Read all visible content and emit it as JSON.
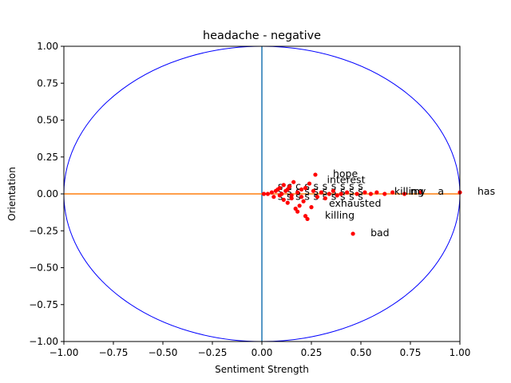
{
  "chart_data": {
    "type": "scatter",
    "title": "headache - negative",
    "xlabel": "Sentiment Strength",
    "ylabel": "Orientation",
    "xlim": [
      -1.0,
      1.0
    ],
    "ylim": [
      -1.0,
      1.0
    ],
    "xticks": [
      "−1.00",
      "−0.75",
      "−0.50",
      "−0.25",
      "0.00",
      "0.25",
      "0.50",
      "0.75",
      "1.00"
    ],
    "yticks": [
      "1.00",
      "0.75",
      "0.50",
      "0.25",
      "0.00",
      "−0.25",
      "−0.50",
      "−0.75",
      "−1.00"
    ],
    "grid": false,
    "colors": {
      "points": "#ff0000",
      "circle": "#0000ff",
      "vline": "#1f77b4",
      "hline": "#ff7f0e"
    },
    "labeled_points": [
      {
        "word": "has",
        "x": 1.0,
        "y": 0.01
      },
      {
        "word": "a",
        "x": 0.8,
        "y": 0.01
      },
      {
        "word": "my",
        "x": 0.66,
        "y": 0.01
      },
      {
        "word": "killing",
        "x": 0.58,
        "y": 0.01
      },
      {
        "word": "hope",
        "x": 0.27,
        "y": 0.13
      },
      {
        "word": "interest",
        "x": 0.24,
        "y": 0.09
      },
      {
        "word": "bad",
        "x": 0.46,
        "y": -0.27
      },
      {
        "word": "exhausted",
        "x": 0.25,
        "y": -0.07
      },
      {
        "word": "killing",
        "x": 0.23,
        "y": -0.15
      }
    ],
    "points": [
      {
        "x": 0.01,
        "y": 0.0
      },
      {
        "x": 0.03,
        "y": 0.0
      },
      {
        "x": 0.05,
        "y": 0.01
      },
      {
        "x": 0.06,
        "y": -0.02
      },
      {
        "x": 0.07,
        "y": 0.02
      },
      {
        "x": 0.08,
        "y": 0.03
      },
      {
        "x": 0.09,
        "y": -0.01
      },
      {
        "x": 0.1,
        "y": 0.0
      },
      {
        "x": 0.11,
        "y": -0.04
      },
      {
        "x": 0.12,
        "y": 0.02
      },
      {
        "x": 0.13,
        "y": -0.06
      },
      {
        "x": 0.14,
        "y": 0.05
      },
      {
        "x": 0.15,
        "y": -0.03
      },
      {
        "x": 0.16,
        "y": 0.08
      },
      {
        "x": 0.17,
        "y": -0.1
      },
      {
        "x": 0.18,
        "y": -0.12
      },
      {
        "x": 0.19,
        "y": -0.08
      },
      {
        "x": 0.2,
        "y": 0.03
      },
      {
        "x": 0.21,
        "y": -0.05
      },
      {
        "x": 0.22,
        "y": -0.15
      },
      {
        "x": 0.23,
        "y": -0.17
      },
      {
        "x": 0.24,
        "y": 0.07
      },
      {
        "x": 0.25,
        "y": -0.09
      },
      {
        "x": 0.26,
        "y": 0.02
      },
      {
        "x": 0.27,
        "y": 0.13
      },
      {
        "x": 0.28,
        "y": -0.02
      },
      {
        "x": 0.3,
        "y": 0.01
      },
      {
        "x": 0.32,
        "y": -0.03
      },
      {
        "x": 0.34,
        "y": 0.0
      },
      {
        "x": 0.36,
        "y": 0.02
      },
      {
        "x": 0.38,
        "y": -0.01
      },
      {
        "x": 0.4,
        "y": 0.0
      },
      {
        "x": 0.43,
        "y": 0.01
      },
      {
        "x": 0.46,
        "y": -0.27
      },
      {
        "x": 0.48,
        "y": 0.0
      },
      {
        "x": 0.52,
        "y": 0.01
      },
      {
        "x": 0.55,
        "y": 0.0
      },
      {
        "x": 0.58,
        "y": 0.01
      },
      {
        "x": 0.62,
        "y": 0.0
      },
      {
        "x": 0.66,
        "y": 0.01
      },
      {
        "x": 0.72,
        "y": 0.0
      },
      {
        "x": 0.8,
        "y": 0.01
      },
      {
        "x": 1.0,
        "y": 0.01
      },
      {
        "x": 0.09,
        "y": 0.04
      },
      {
        "x": 0.11,
        "y": 0.06
      },
      {
        "x": 0.13,
        "y": 0.03
      },
      {
        "x": 0.15,
        "y": -0.01
      },
      {
        "x": 0.18,
        "y": 0.01
      },
      {
        "x": 0.2,
        "y": -0.02
      },
      {
        "x": 0.22,
        "y": 0.04
      }
    ],
    "cluster_labels": [
      "s",
      "c",
      "c",
      "s",
      "s",
      "s",
      "s",
      "s",
      "s",
      "s",
      "s",
      "s",
      "s",
      "s",
      "s",
      "s",
      "s",
      "s",
      "s",
      "s",
      "s",
      "s",
      "s",
      "s",
      "s",
      "s",
      "s",
      "s",
      "s",
      "s"
    ]
  }
}
